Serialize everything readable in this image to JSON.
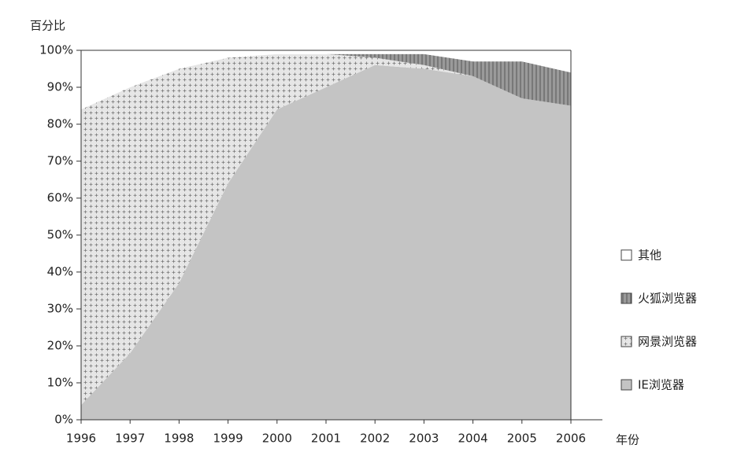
{
  "chart_data": {
    "type": "stacked-area",
    "y_label": "百分比",
    "x_label": "年份",
    "x": [
      1996,
      1997,
      1998,
      1999,
      2000,
      2001,
      2002,
      2003,
      2004,
      2005,
      2006
    ],
    "xlim": [
      1996,
      2006
    ],
    "xticks": [
      1996,
      1997,
      1998,
      1999,
      2000,
      2001,
      2002,
      2003,
      2004,
      2005,
      2006
    ],
    "ylim": [
      0,
      100
    ],
    "yticks": [
      {
        "value": 0,
        "label": "0%"
      },
      {
        "value": 10,
        "label": "10%"
      },
      {
        "value": 20,
        "label": "20%"
      },
      {
        "value": 30,
        "label": "30%"
      },
      {
        "value": 40,
        "label": "40%"
      },
      {
        "value": 50,
        "label": "50%"
      },
      {
        "value": 60,
        "label": "60%"
      },
      {
        "value": 70,
        "label": "70%"
      },
      {
        "value": 80,
        "label": "80%"
      },
      {
        "value": 90,
        "label": "90%"
      },
      {
        "value": 100,
        "label": "100%"
      }
    ],
    "series": [
      {
        "name": "IE浏览器",
        "color": "#c4c4c4",
        "values": [
          4,
          18,
          37,
          64,
          84,
          90,
          96,
          95,
          93,
          87,
          85
        ]
      },
      {
        "name": "网景浏览器",
        "color": "#e6e6e6",
        "values": [
          80,
          72,
          58,
          34,
          15,
          9,
          2,
          1,
          0,
          0,
          0
        ]
      },
      {
        "name": "火狐浏览器",
        "color": "#8c8c8c",
        "values": [
          0,
          0,
          0,
          0,
          0,
          0,
          1,
          3,
          4,
          10,
          9
        ]
      },
      {
        "name": "其他",
        "color": "#ffffff",
        "values": [
          16,
          10,
          5,
          2,
          1,
          1,
          1,
          1,
          3,
          3,
          6
        ]
      }
    ]
  }
}
